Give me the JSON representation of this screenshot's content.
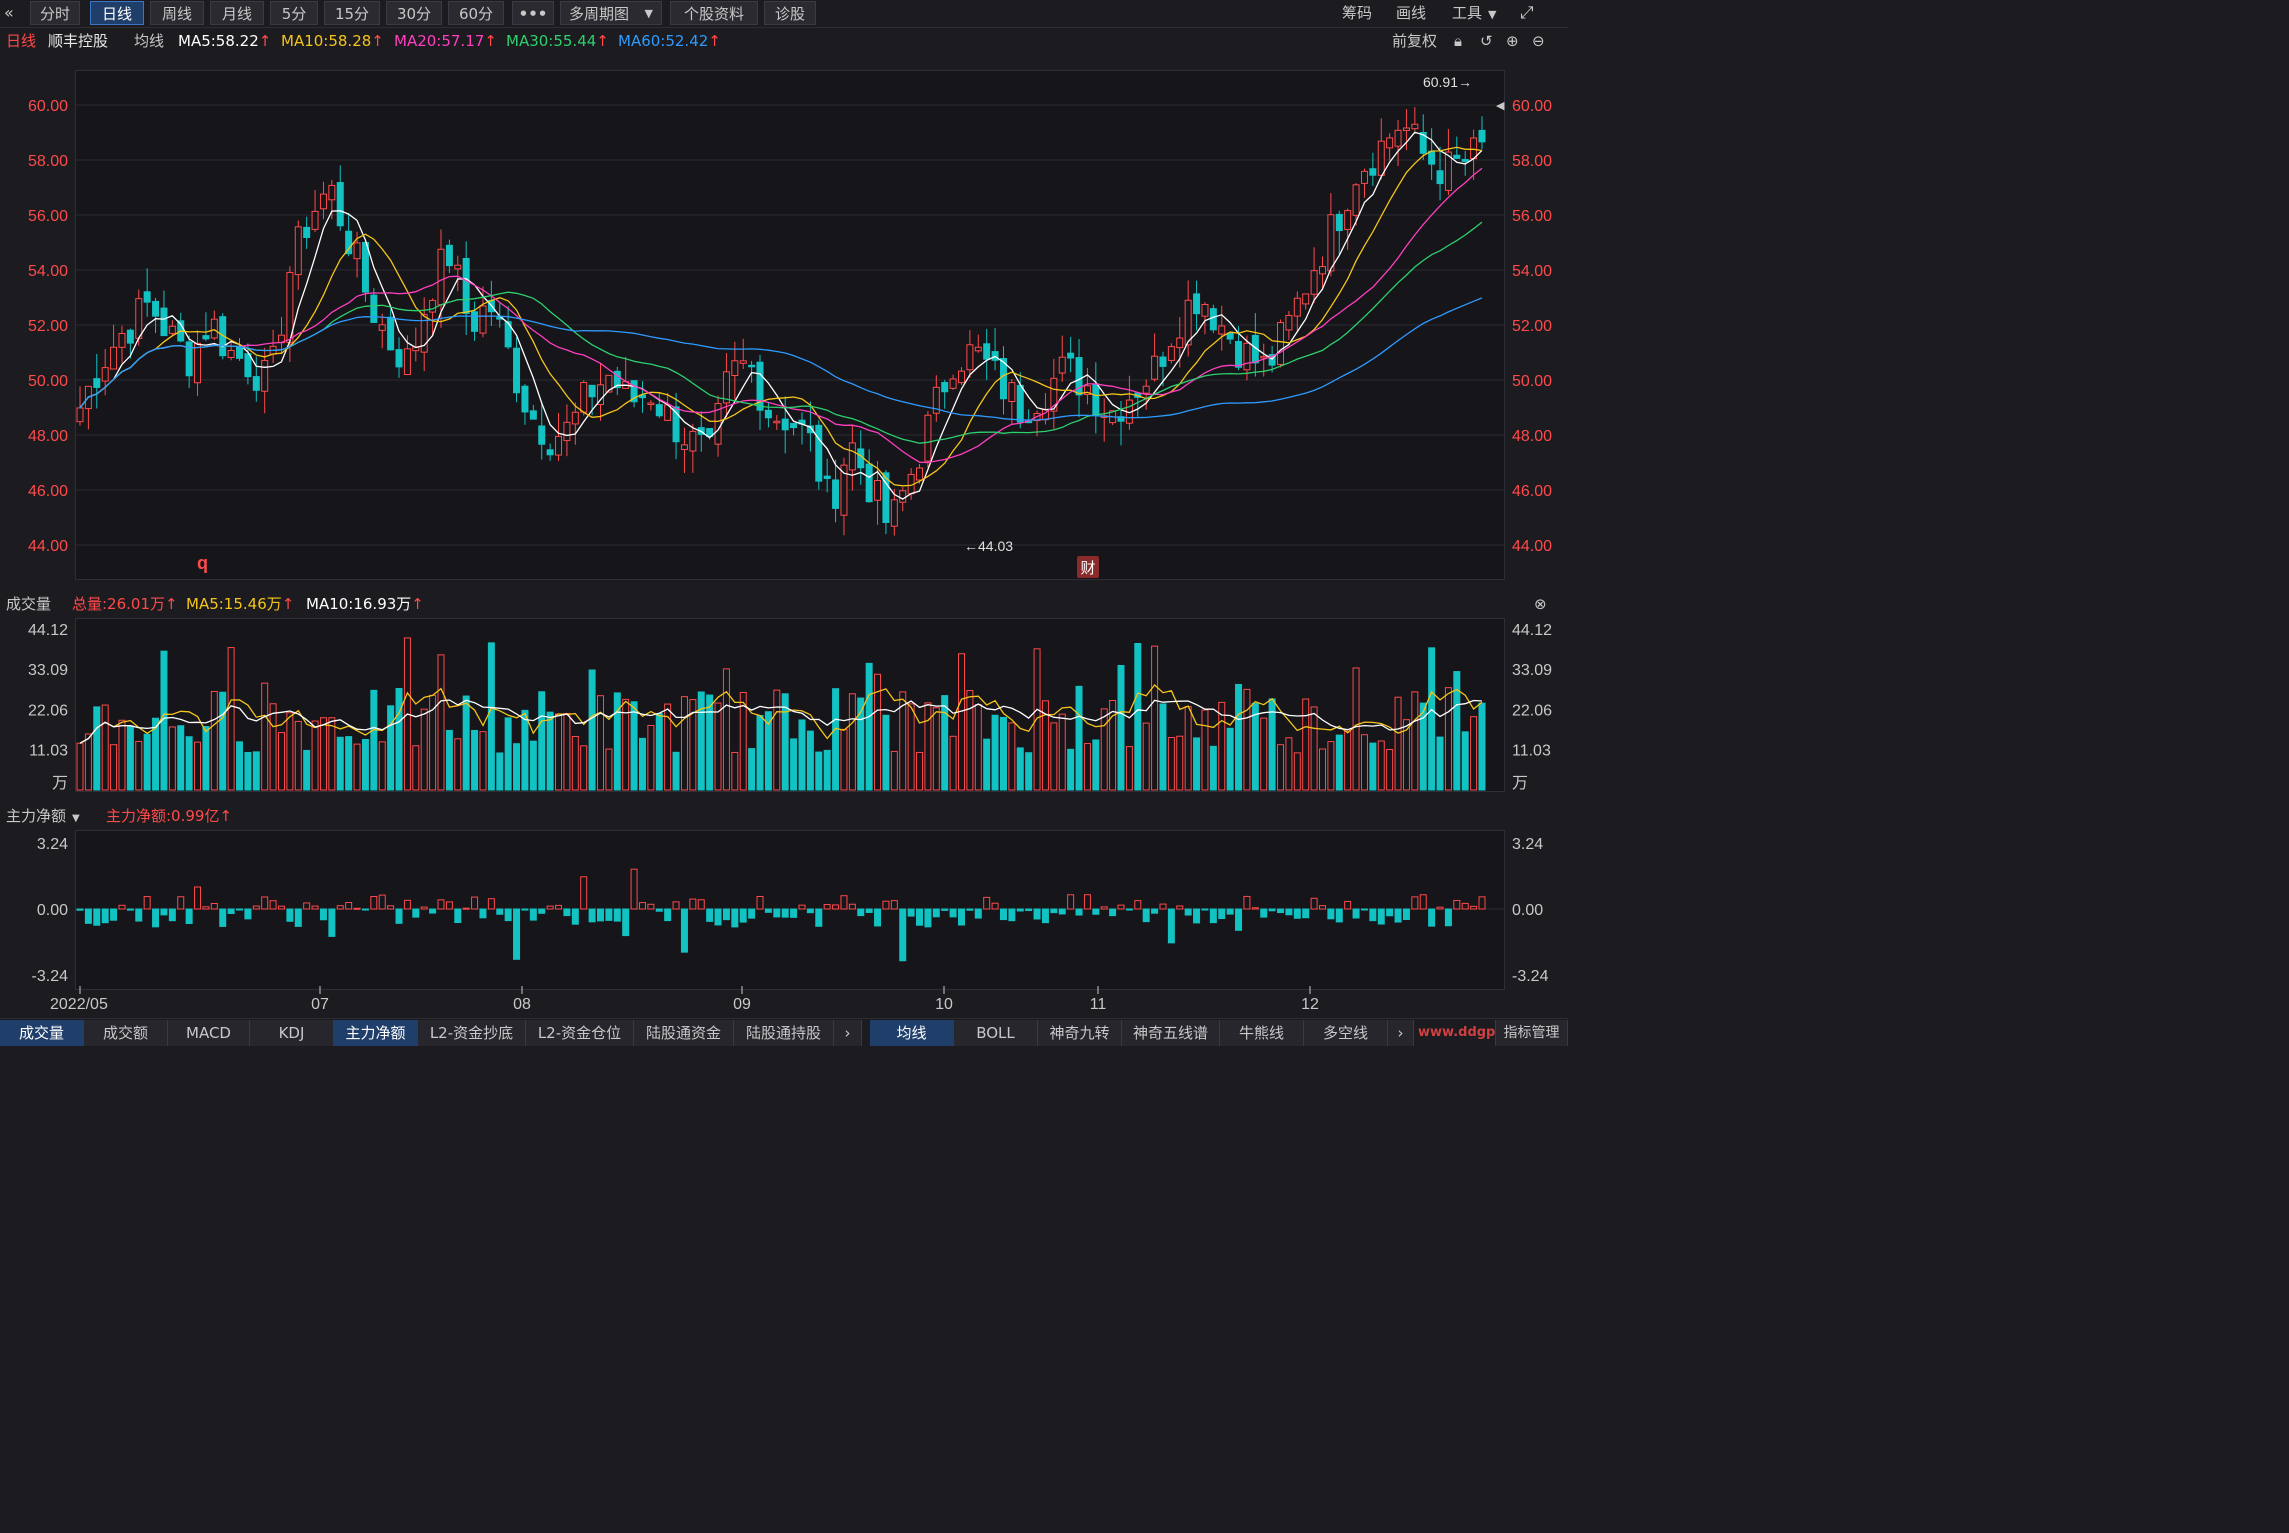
{
  "toolbar": {
    "back_icon": "double-chevron-left-icon",
    "periods": [
      "分时",
      "日线",
      "周线",
      "月线",
      "5分",
      "15分",
      "30分",
      "60分"
    ],
    "active_period": "日线",
    "more": "•••",
    "multi": "多周期图",
    "profile": "个股资料",
    "diagnose": "诊股",
    "chips": "筹码",
    "draw": "画线",
    "tools": "工具",
    "fullscreen_icon": "fullscreen-icon"
  },
  "kline": {
    "period": "日线",
    "stock": "顺丰控股",
    "avg_label": "均线",
    "ma5": "MA5:58.22",
    "ma10": "MA10:58.28",
    "ma20": "MA20:57.17",
    "ma30": "MA30:55.44",
    "ma60": "MA60:52.42",
    "adjust": "前复权",
    "high_note": "60.91→",
    "low_note": "←44.03",
    "marker_q": "q",
    "marker_cai": "财",
    "y_ticks": [
      "60.00",
      "58.00",
      "56.00",
      "54.00",
      "52.00",
      "50.00",
      "48.00",
      "46.00",
      "44.00"
    ],
    "colors": {
      "up": "#ff4a4a",
      "down": "#13c2c2",
      "ma5": "#ffffff",
      "ma10": "#f5c518",
      "ma20": "#ff3fbf",
      "ma30": "#2ed06e",
      "ma60": "#2f9bff"
    }
  },
  "volume": {
    "title": "成交量",
    "total": "总量:26.01万",
    "ma5": "MA5:15.46万",
    "ma10": "MA10:16.93万",
    "y_ticks": [
      "44.12",
      "33.09",
      "22.06",
      "11.03"
    ],
    "unit": "万"
  },
  "capital": {
    "title": "主力净额",
    "value": "主力净额:0.99亿",
    "y_ticks": [
      "3.24",
      "0.00",
      "-3.24"
    ]
  },
  "x_axis": [
    "2022/05",
    "07",
    "08",
    "09",
    "10",
    "11",
    "12"
  ],
  "tabs_left": [
    "成交量",
    "成交额",
    "MACD",
    "KDJ",
    "主力净额",
    "L2-资金抄底",
    "L2-资金仓位",
    "陆股通资金",
    "陆股通持股"
  ],
  "tabs_right": [
    "均线",
    "BOLL",
    "神奇九转",
    "神奇五线谱",
    "牛熊线",
    "多空线"
  ],
  "indicator_manage": "指标管理",
  "watermark": "www.ddgp..."
}
